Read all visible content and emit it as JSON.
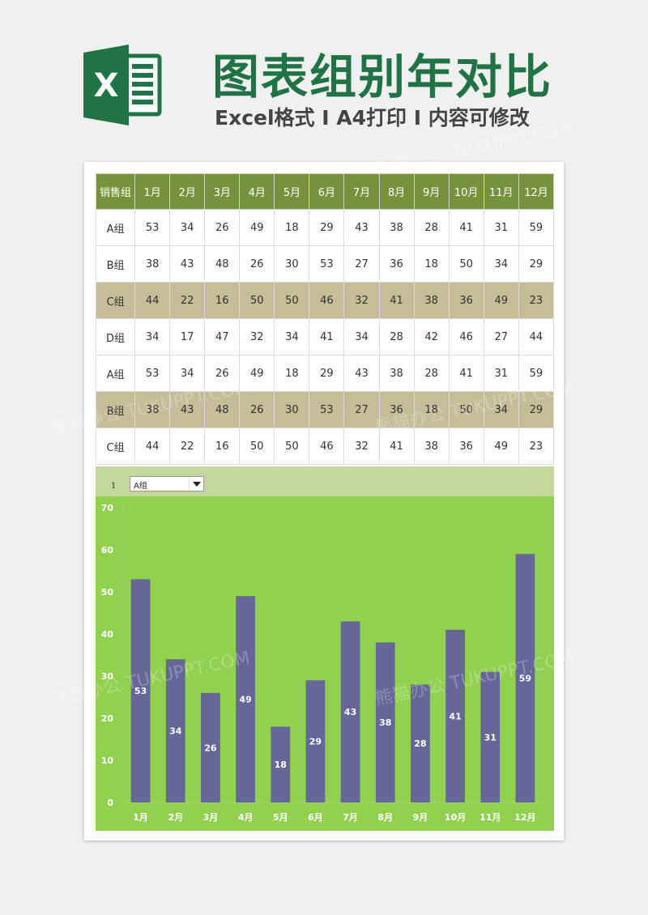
{
  "header": {
    "logo_letter": "X",
    "title": "图表组别年对比",
    "subtitle": "Excel格式 I A4打印 I 内容可修改"
  },
  "table": {
    "headers": [
      "销售组",
      "1月",
      "2月",
      "3月",
      "4月",
      "5月",
      "6月",
      "7月",
      "8月",
      "9月",
      "10月",
      "11月",
      "12月"
    ],
    "rows": [
      {
        "group": "A组",
        "values": [
          53,
          34,
          26,
          49,
          18,
          29,
          43,
          38,
          28,
          41,
          31,
          59
        ],
        "shaded": false
      },
      {
        "group": "B组",
        "values": [
          38,
          43,
          48,
          26,
          30,
          53,
          27,
          36,
          18,
          50,
          34,
          29
        ],
        "shaded": false
      },
      {
        "group": "C组",
        "values": [
          44,
          22,
          16,
          50,
          50,
          46,
          32,
          41,
          38,
          36,
          49,
          23
        ],
        "shaded": true
      },
      {
        "group": "D组",
        "values": [
          34,
          17,
          47,
          32,
          34,
          41,
          34,
          28,
          42,
          46,
          27,
          44
        ],
        "shaded": false
      },
      {
        "group": "A组",
        "values": [
          53,
          34,
          26,
          49,
          18,
          29,
          43,
          38,
          28,
          41,
          31,
          59
        ],
        "shaded": false
      },
      {
        "group": "B组",
        "values": [
          38,
          43,
          48,
          26,
          30,
          53,
          27,
          36,
          18,
          50,
          34,
          29
        ],
        "shaded": true
      },
      {
        "group": "C组",
        "values": [
          44,
          22,
          16,
          50,
          50,
          46,
          32,
          41,
          38,
          36,
          49,
          23
        ],
        "shaded": false
      }
    ]
  },
  "selector": {
    "index": "1",
    "selected": "A组"
  },
  "colors": {
    "header_green": "#76923c",
    "tan_row": "#c4bd97",
    "selector_bar": "#c3d69b",
    "chart_bg": "#92d050",
    "bar": "#666699",
    "title_green": "#207345"
  },
  "chart_data": {
    "type": "bar",
    "categories": [
      "1月",
      "2月",
      "3月",
      "4月",
      "5月",
      "6月",
      "7月",
      "8月",
      "9月",
      "10月",
      "11月",
      "12月"
    ],
    "values": [
      53,
      34,
      26,
      49,
      18,
      29,
      43,
      38,
      28,
      41,
      31,
      59
    ],
    "ylim": [
      0,
      70
    ],
    "yticks": [
      0,
      10,
      20,
      30,
      40,
      50,
      60,
      70
    ],
    "grid": false,
    "data_labels": true,
    "legend": "none"
  }
}
